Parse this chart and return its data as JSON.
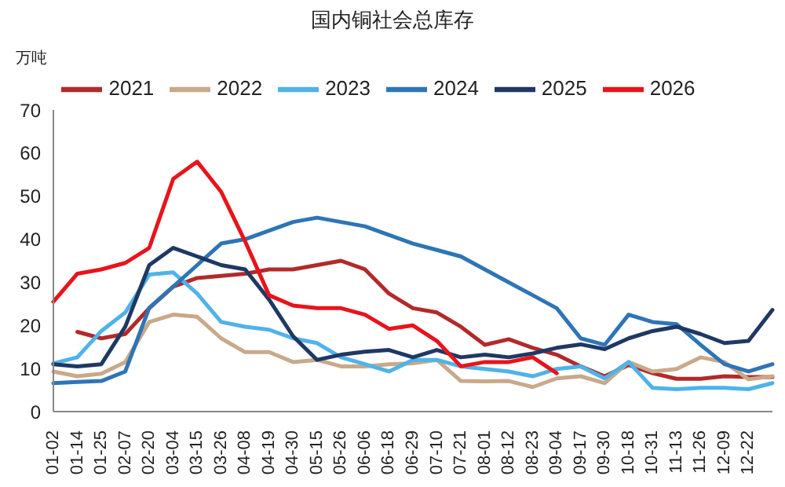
{
  "chart_data": {
    "type": "line",
    "title": "国内铜社会总库存",
    "ylabel": "万吨",
    "categories": [
      "01-02",
      "01-14",
      "01-25",
      "02-07",
      "02-20",
      "03-04",
      "03-15",
      "03-26",
      "04-08",
      "04-19",
      "04-30",
      "05-15",
      "05-26",
      "06-06",
      "06-18",
      "06-29",
      "07-10",
      "07-21",
      "08-01",
      "08-12",
      "08-23",
      "09-04",
      "09-17",
      "09-30",
      "10-18",
      "10-31",
      "11-13",
      "11-26",
      "12-09",
      "12-22",
      null
    ],
    "series": [
      {
        "name": "2021",
        "color": "#b22a2a",
        "values": [
          null,
          18.5,
          17,
          18,
          24,
          29,
          31,
          31.5,
          32,
          33,
          33,
          34,
          35,
          33,
          27.4,
          24,
          23,
          19.7,
          15.5,
          16.8,
          14.8,
          13.2,
          10.5,
          8.2,
          10.8,
          8.9,
          7.6,
          7.6,
          8.2,
          8,
          8
        ]
      },
      {
        "name": "2022",
        "color": "#c8a98a",
        "values": [
          9.3,
          8.2,
          8.8,
          11.5,
          20.8,
          22.5,
          22,
          17,
          13.8,
          13.8,
          11.5,
          12,
          10.5,
          10.5,
          11,
          11.2,
          12,
          7.1,
          7,
          7.1,
          5.7,
          7.7,
          8.2,
          6.6,
          11.5,
          9.3,
          9.9,
          12.6,
          11.5,
          7.5,
          8.2
        ]
      },
      {
        "name": "2023",
        "color": "#4fb3e8",
        "values": [
          11.2,
          12.6,
          18.7,
          23,
          31.8,
          32.3,
          27.4,
          20.8,
          19.7,
          19,
          17,
          15.9,
          12.6,
          11,
          9.3,
          12,
          12,
          10.5,
          9.9,
          9.3,
          8.2,
          9.9,
          10.5,
          7.7,
          11.5,
          5.5,
          5.2,
          5.5,
          5.5,
          5.2,
          6.6
        ]
      },
      {
        "name": "2024",
        "color": "#2e75b6",
        "values": [
          6.6,
          6.9,
          7.1,
          9.3,
          24.1,
          29,
          34,
          39,
          40,
          42,
          44,
          45,
          44,
          43,
          41,
          39,
          37.5,
          36,
          33,
          30,
          27,
          24,
          17,
          15.5,
          22.5,
          20.8,
          20.3,
          15.5,
          11,
          9.3,
          11
        ]
      },
      {
        "name": "2025",
        "color": "#1f3864",
        "values": [
          11,
          10.5,
          11,
          19.7,
          34,
          38,
          36,
          34,
          33,
          26,
          17.5,
          12,
          13.2,
          13.9,
          14.3,
          12.6,
          14.3,
          12.6,
          13.2,
          12.6,
          13.5,
          14.8,
          15.6,
          14.5,
          17,
          18.7,
          19.7,
          18,
          15.9,
          16.4,
          23.6
        ]
      },
      {
        "name": "2026",
        "color": "#e8141b",
        "values": [
          25.5,
          32,
          33,
          34.5,
          38,
          54,
          58,
          51,
          39.5,
          27,
          24.6,
          24,
          24,
          22.5,
          19.2,
          20,
          16.4,
          10.5,
          11.5,
          11.5,
          12.6,
          8.9,
          null,
          null,
          null,
          null,
          null,
          null,
          null,
          null,
          null
        ]
      }
    ],
    "ylim": [
      0,
      70
    ],
    "yticks": [
      0,
      10,
      20,
      30,
      40,
      50,
      60,
      70
    ],
    "grid": false,
    "legend": "top",
    "marker": "none",
    "line_style": "solid"
  }
}
